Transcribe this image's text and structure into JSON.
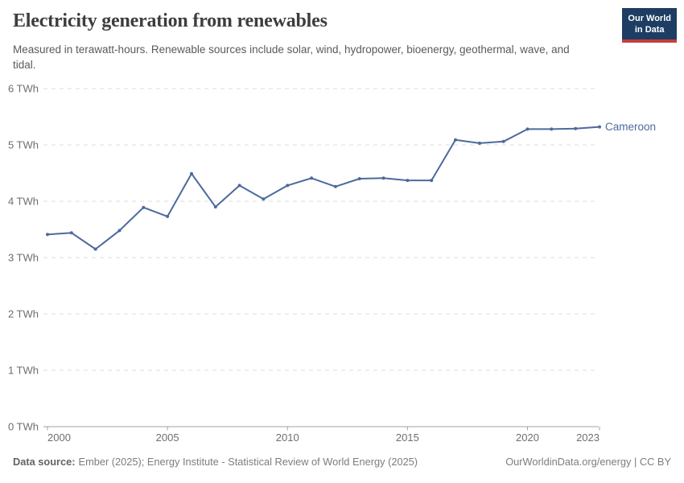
{
  "header": {
    "title": "Electricity generation from renewables",
    "subtitle": "Measured in terawatt-hours. Renewable sources include solar, wind, hydropower, bioenergy, geothermal, wave, and tidal.",
    "logo": {
      "line1": "Our World",
      "line2": "in Data"
    }
  },
  "chart_data": {
    "type": "line",
    "title": "Electricity generation from renewables",
    "xlabel": "",
    "ylabel": "TWh",
    "x": [
      2000,
      2001,
      2002,
      2003,
      2004,
      2005,
      2006,
      2007,
      2008,
      2009,
      2010,
      2011,
      2012,
      2013,
      2014,
      2015,
      2016,
      2017,
      2018,
      2019,
      2020,
      2021,
      2022,
      2023
    ],
    "series": [
      {
        "name": "Cameroon",
        "color": "#4c6a9c",
        "values": [
          3.41,
          3.44,
          3.15,
          3.48,
          3.89,
          3.73,
          4.49,
          3.9,
          4.28,
          4.04,
          4.28,
          4.41,
          4.26,
          4.4,
          4.41,
          4.37,
          4.37,
          5.09,
          5.03,
          5.06,
          5.28,
          5.28,
          5.29,
          5.32
        ]
      }
    ],
    "xlim": [
      2000,
      2023
    ],
    "ylim": [
      0,
      6
    ],
    "x_ticks": [
      2000,
      2005,
      2010,
      2015,
      2020,
      2023
    ],
    "y_ticks": [
      0,
      1,
      2,
      3,
      4,
      5,
      6
    ],
    "y_tick_suffix": " TWh",
    "grid": "horizontal-dashed",
    "legend_position": "end-of-line-label"
  },
  "footer": {
    "datasource_label": "Data source:",
    "datasource_value": "Ember (2025); Energy Institute - Statistical Review of World Energy (2025)",
    "rights": "OurWorldinData.org/energy | CC BY"
  },
  "colors": {
    "line": "#4c6a9c",
    "grid": "#dedede",
    "axis": "#a3a3a3",
    "tick_label": "#6e6e6e",
    "logo_bg": "#1d3d63",
    "logo_stripe": "#c53d3d",
    "title_text": "#3d3d3d",
    "subtitle_text": "#5a5a5a",
    "footer_text": "#7d7d7d"
  }
}
